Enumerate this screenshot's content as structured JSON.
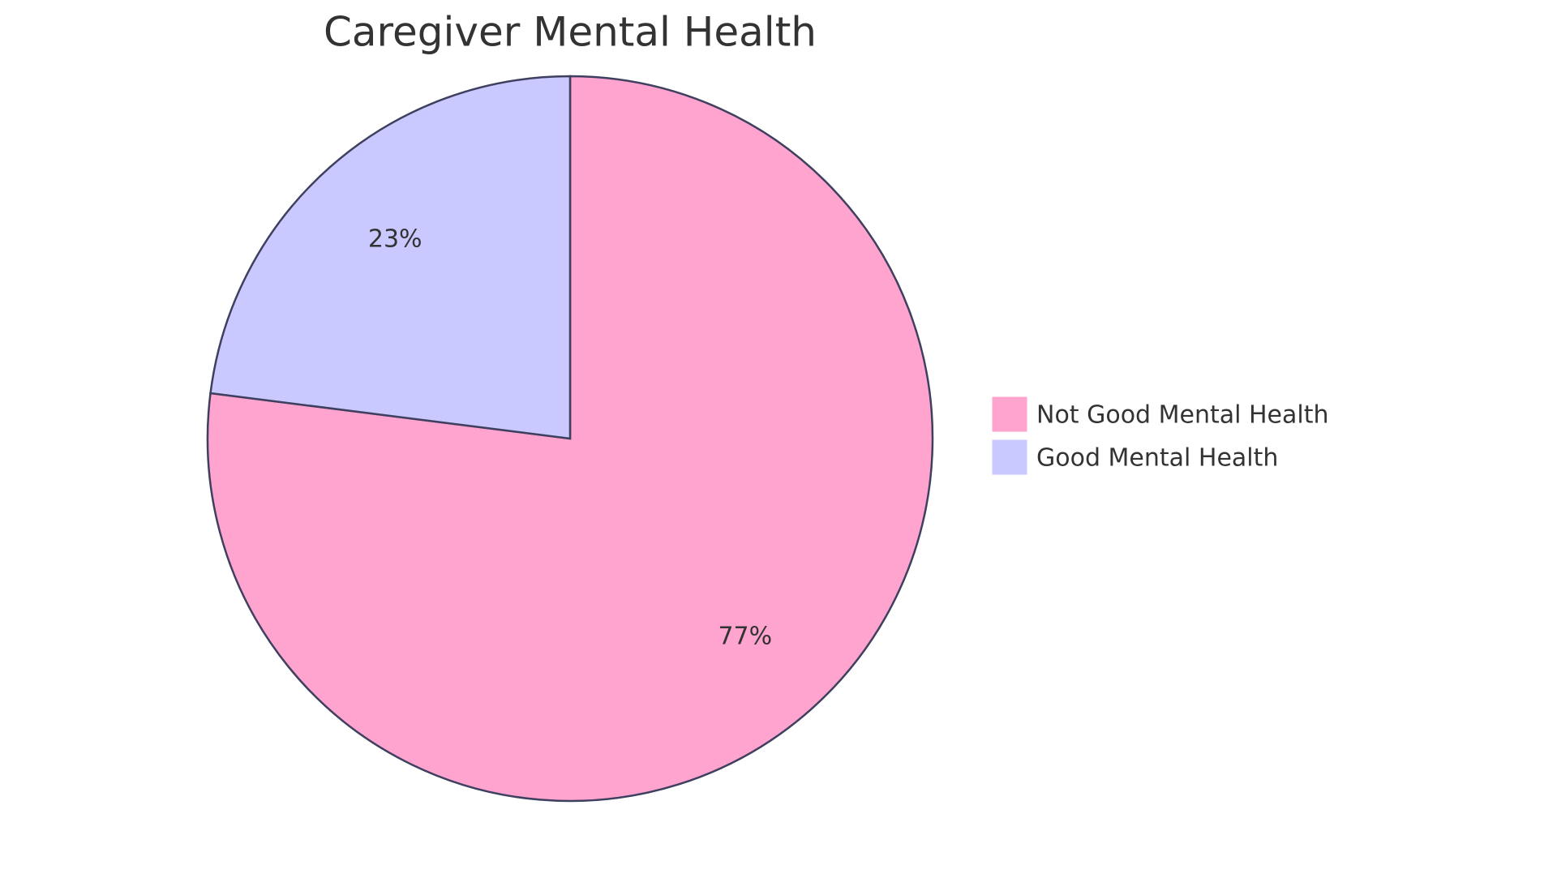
{
  "chart_data": {
    "type": "pie",
    "title": "Caregiver Mental Health",
    "categories": [
      "Not Good Mental Health",
      "Good Mental Health"
    ],
    "values": [
      77,
      23
    ],
    "value_labels": [
      "77%",
      "23%"
    ],
    "colors": [
      "#ffa3cf",
      "#c9c9ff"
    ],
    "legend": "right"
  }
}
